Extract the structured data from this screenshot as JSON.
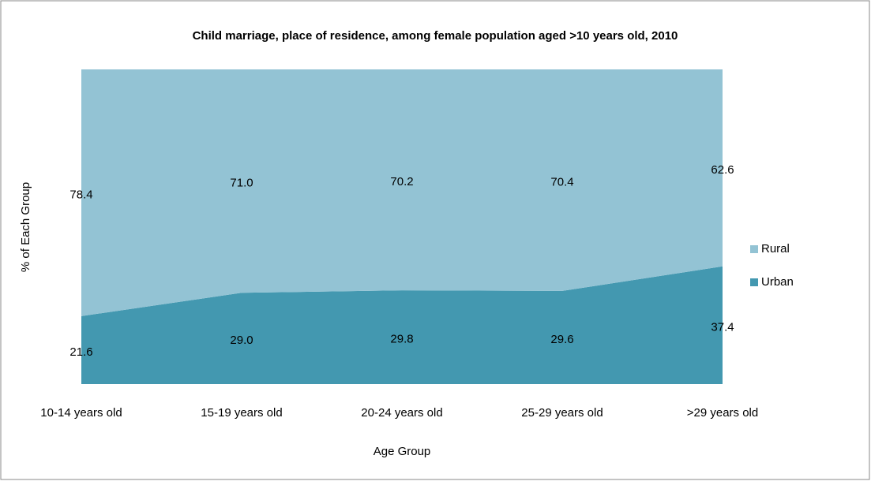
{
  "chart_data": {
    "type": "area_stacked_percent",
    "title": "Child marriage, place of residence, among female population aged >10 years old, 2010",
    "x_label": "Age Group",
    "y_label": "% of Each Group",
    "categories": [
      "10-14 years old",
      "15-19 years old",
      "20-24 years old",
      "25-29 years old",
      ">29 years old"
    ],
    "series": [
      {
        "name": "Urban",
        "color": "#4398b0",
        "values": [
          21.6,
          29.0,
          29.8,
          29.6,
          37.4
        ],
        "value_labels": [
          "21.6",
          "29.0",
          "29.8",
          "29.6",
          "37.4"
        ]
      },
      {
        "name": "Rural",
        "color": "#93c3d4",
        "values": [
          78.4,
          71.0,
          70.2,
          70.4,
          62.6
        ],
        "value_labels": [
          "78.4",
          "71.0",
          "70.2",
          "70.4",
          "62.6"
        ]
      }
    ],
    "ylim": [
      0,
      100
    ],
    "legend": "right"
  }
}
